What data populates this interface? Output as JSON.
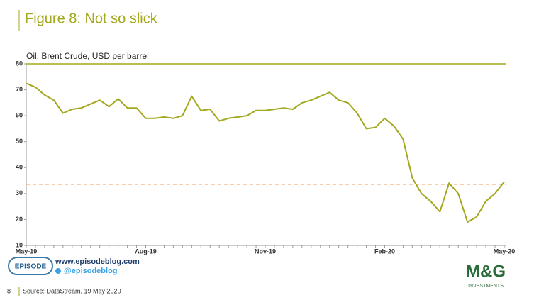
{
  "chart_data": {
    "type": "line",
    "title": "Figure 8: Not so slick",
    "subtitle": "Oil, Brent Crude, USD per barrel",
    "categories": [
      "May-19",
      null,
      null,
      null,
      null,
      null,
      null,
      null,
      null,
      null,
      null,
      null,
      null,
      "Aug-19",
      null,
      null,
      null,
      null,
      null,
      null,
      null,
      null,
      null,
      null,
      null,
      null,
      "Nov-19",
      null,
      null,
      null,
      null,
      null,
      null,
      null,
      null,
      null,
      null,
      null,
      null,
      "Feb-20",
      null,
      null,
      null,
      null,
      null,
      null,
      null,
      null,
      null,
      null,
      null,
      null,
      "May-20"
    ],
    "series": [
      {
        "name": "Brent Crude",
        "color": "#a3a81e",
        "values": [
          72.5,
          71,
          68,
          66,
          61,
          62.5,
          63,
          64.5,
          66,
          63.5,
          66.5,
          63,
          63,
          59,
          59,
          59.5,
          59,
          60,
          67.5,
          62,
          62.5,
          58,
          59,
          59.5,
          60,
          62,
          62,
          62.5,
          63,
          62.5,
          65,
          66,
          67.5,
          69,
          66,
          65,
          61,
          55,
          55.5,
          59,
          56,
          51,
          36,
          30,
          27,
          23,
          34,
          30,
          19,
          21,
          27,
          30,
          34.5
        ]
      }
    ],
    "reference_line": {
      "value": 33.5,
      "color": "#f0b27a"
    },
    "ylim": [
      10,
      80
    ],
    "yticks": [
      10,
      20,
      30,
      40,
      50,
      60,
      70,
      80
    ],
    "grid": false
  },
  "footer": {
    "page_number": "8",
    "source": "Source: DataStream, 19 May 2020",
    "episode_logo": "EPISODE",
    "website": "www.episodeblog.com",
    "twitter": "@episodeblog",
    "mg_logo": "M&G",
    "mg_sub": "INVESTMENTS"
  }
}
